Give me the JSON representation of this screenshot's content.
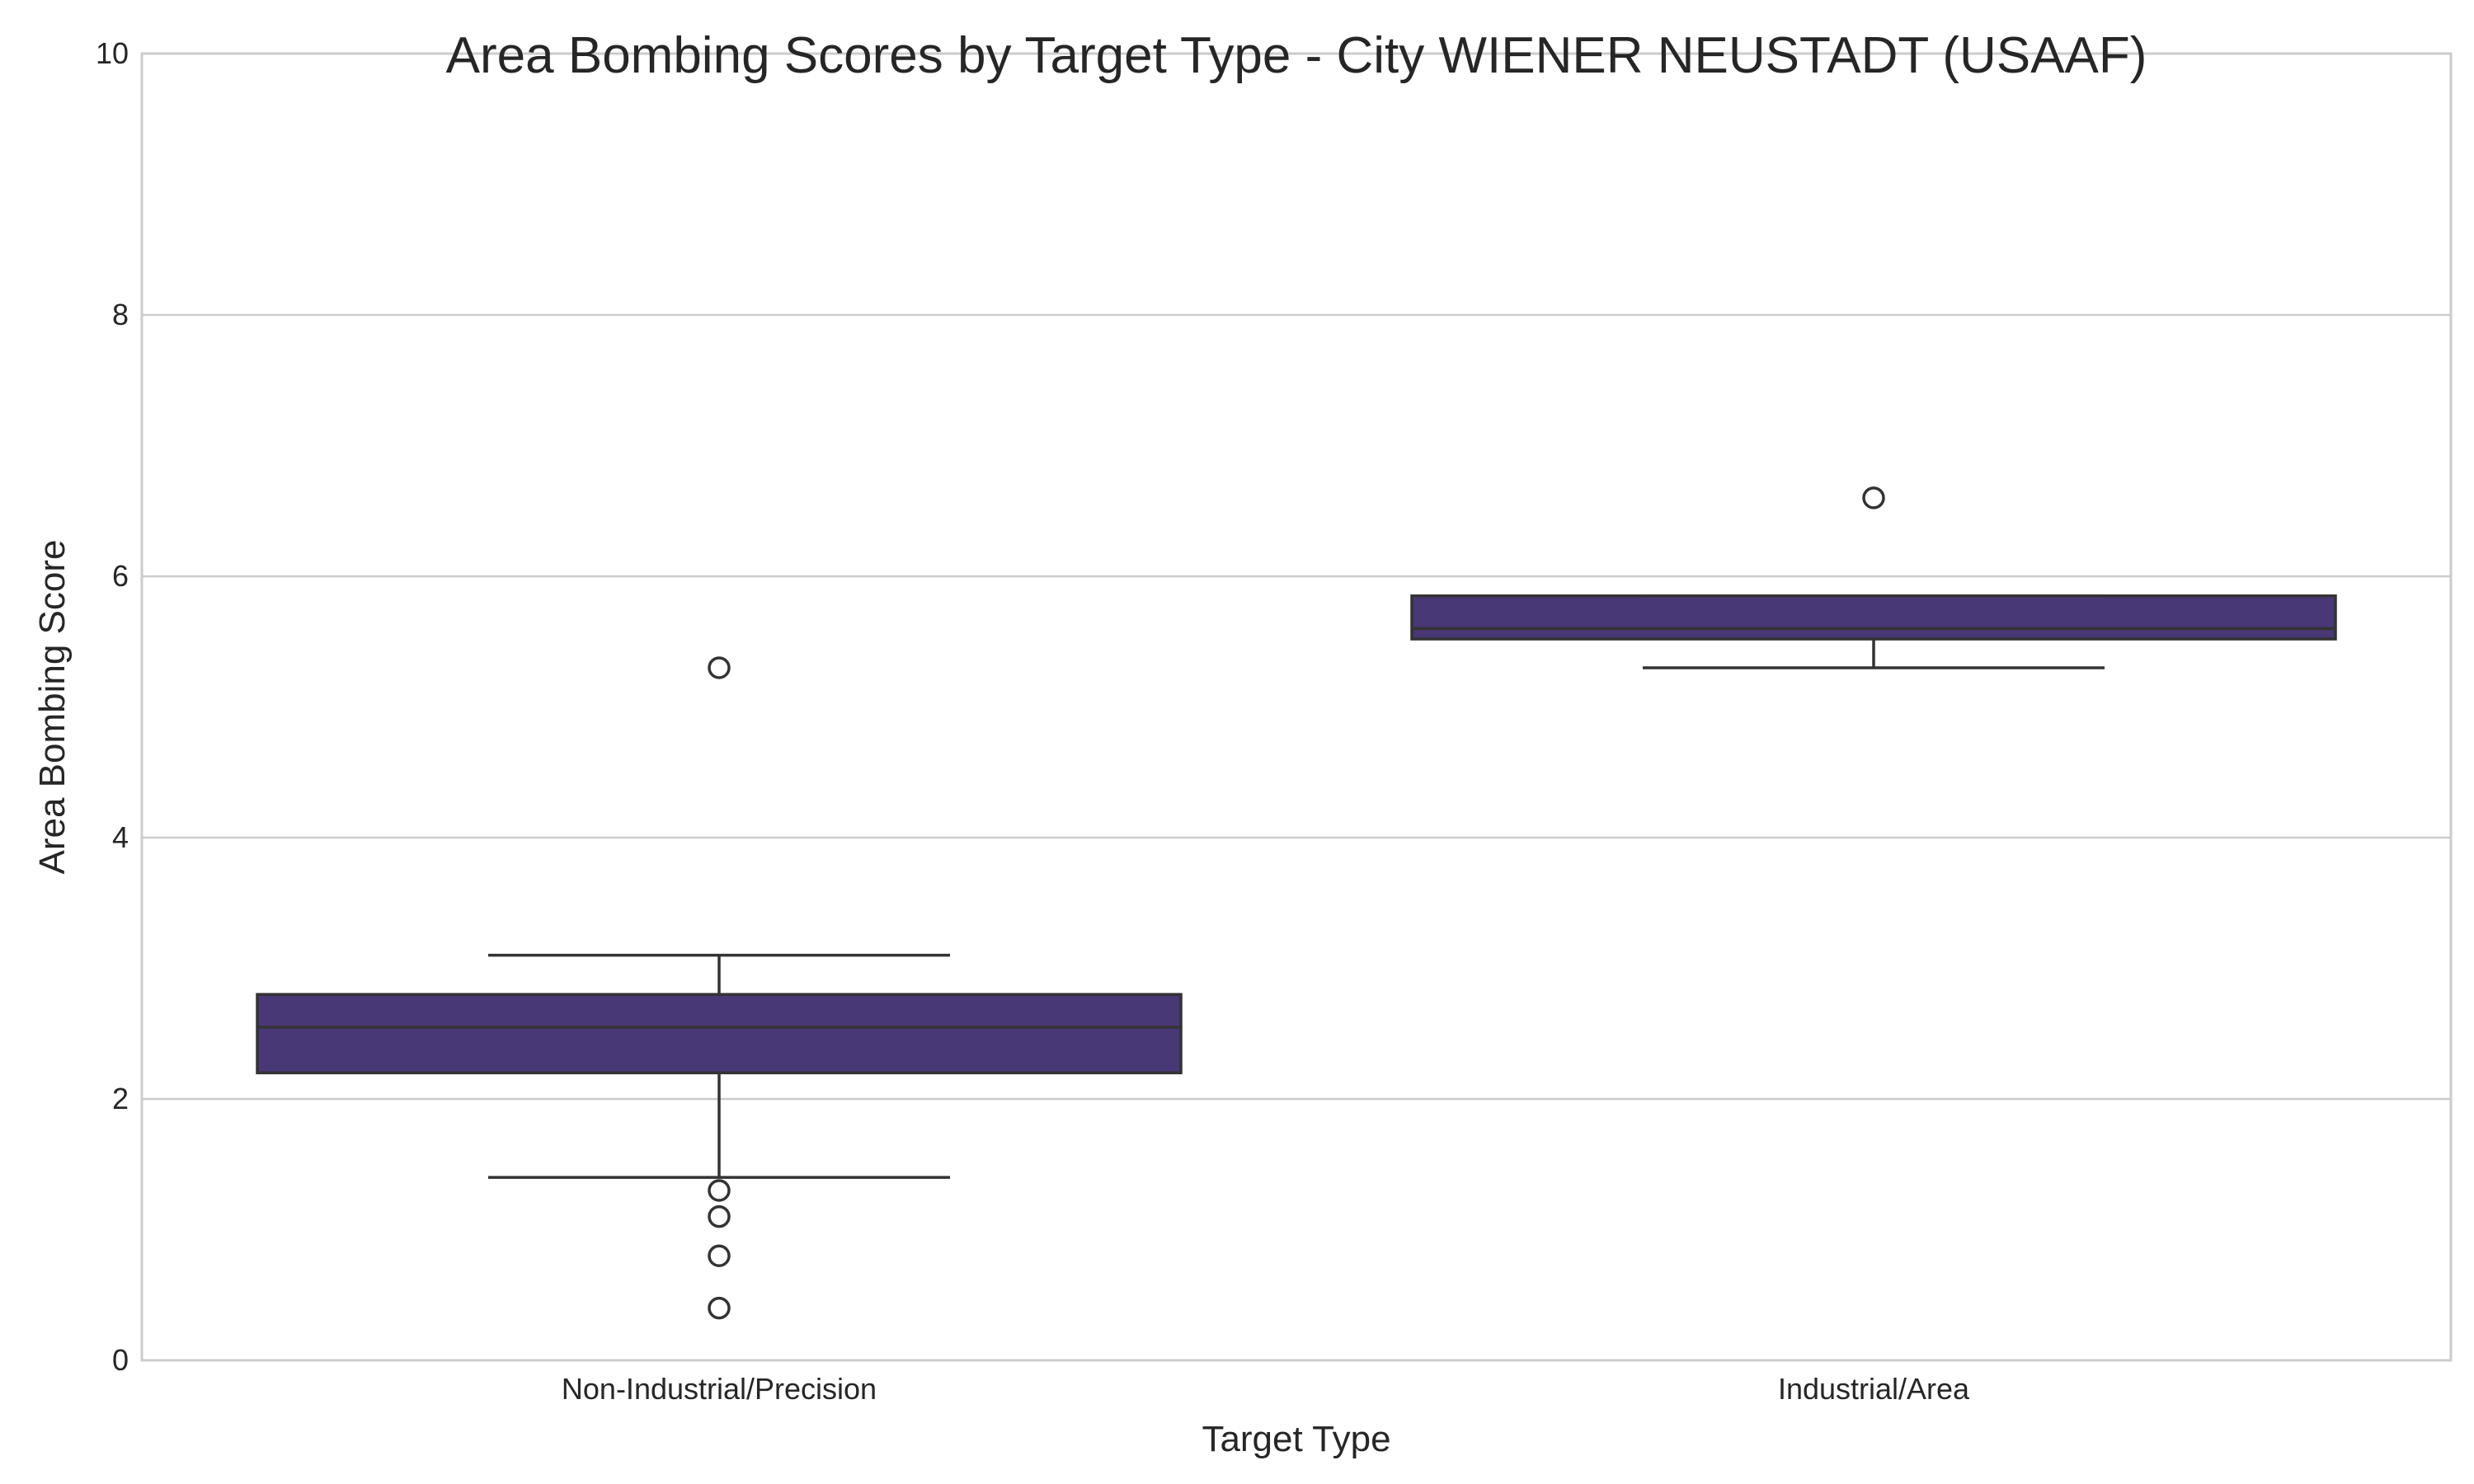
{
  "chart_data": {
    "type": "box",
    "title": "Area Bombing Scores by Target Type - City WIENER NEUSTADT (USAAF)",
    "xlabel": "Target Type",
    "ylabel": "Area Bombing Score",
    "ylim": [
      0,
      10
    ],
    "yticks": [
      "0",
      "2",
      "4",
      "6",
      "8",
      "10"
    ],
    "grid": "horizontal",
    "box_color": "#483876",
    "categories": [
      "Non-Industrial/Precision",
      "Industrial/Area"
    ],
    "series": [
      {
        "category": "Non-Industrial/Precision",
        "whisker_low": 1.4,
        "q1": 2.2,
        "median": 2.55,
        "q3": 2.8,
        "whisker_high": 3.1,
        "outliers": [
          5.3,
          1.3,
          1.1,
          0.8,
          0.4
        ]
      },
      {
        "category": "Industrial/Area",
        "whisker_low": 5.3,
        "q1": 5.52,
        "median": 5.6,
        "q3": 5.85,
        "whisker_high": 5.85,
        "outliers": [
          6.6
        ]
      }
    ]
  }
}
